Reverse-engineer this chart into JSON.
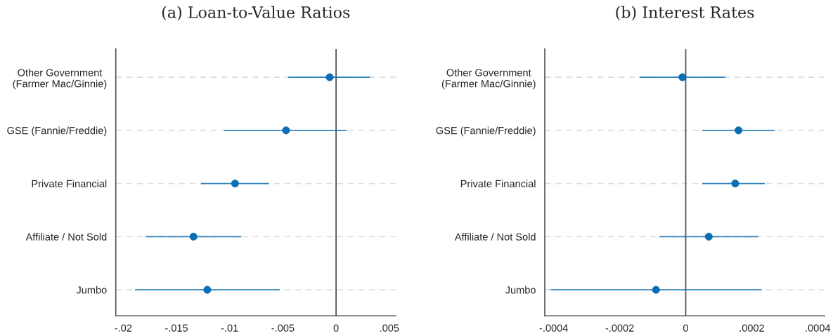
{
  "chart_data": [
    {
      "type": "scatter",
      "orientation": "horizontal",
      "title": "(a) Loan-to-Value Ratios",
      "categories": [
        "Other Government\n(Farmer Mac/Ginnie)",
        "GSE (Fannie/Freddie)",
        "Private Financial",
        "Affiliate / Not Sold",
        "Jumbo"
      ],
      "series": [
        {
          "color": "#0a6eb4",
          "values": [
            -0.0006,
            -0.0047,
            -0.0095,
            -0.0134,
            -0.0121
          ],
          "errors": [
            [
              -0.0045,
              0.0032
            ],
            [
              -0.0105,
              0.001
            ],
            [
              -0.0127,
              -0.0063
            ],
            [
              -0.0179,
              -0.0089
            ],
            [
              -0.0189,
              -0.0053
            ]
          ]
        }
      ],
      "xlim": [
        -0.0207,
        0.0056
      ],
      "xticks": [
        {
          "value": -0.02,
          "label": "-.02"
        },
        {
          "value": -0.015,
          "label": "-.015"
        },
        {
          "value": -0.01,
          "label": "-.01"
        },
        {
          "value": -0.005,
          "label": "-.005"
        },
        0,
        {
          "value": 0.005,
          "label": ".005"
        }
      ],
      "ref_lines": [
        {
          "axis": "x",
          "value": 0,
          "color": "#555555"
        }
      ],
      "grid": "y",
      "marker": "circle"
    },
    {
      "type": "scatter",
      "orientation": "horizontal",
      "title": "(b) Interest Rates",
      "categories": [
        "Other Government\n(Farmer Mac/Ginnie)",
        "GSE (Fannie/Freddie)",
        "Private Financial",
        "Affiliate / Not Sold",
        "Jumbo"
      ],
      "series": [
        {
          "color": "#0a6eb4",
          "values": [
            -1e-05,
            0.00016,
            0.00015,
            7e-05,
            -9e-05
          ],
          "errors": [
            [
              -0.00014,
              0.00012
            ],
            [
              5e-05,
              0.00027
            ],
            [
              5e-05,
              0.00024
            ],
            [
              -8e-05,
              0.00022
            ],
            [
              -0.00041,
              0.00023
            ]
          ]
        }
      ],
      "xlim": [
        -0.000427,
        0.000421
      ],
      "xticks": [
        {
          "value": -0.0004,
          "label": "-.0004"
        },
        {
          "value": -0.0002,
          "label": "-.0002"
        },
        0,
        {
          "value": 0.0002,
          "label": ".0002"
        },
        {
          "value": 0.0004,
          "label": ".0004"
        }
      ],
      "ref_lines": [
        {
          "axis": "x",
          "value": 0,
          "color": "#555555"
        }
      ],
      "grid": "y",
      "marker": "circle"
    }
  ]
}
